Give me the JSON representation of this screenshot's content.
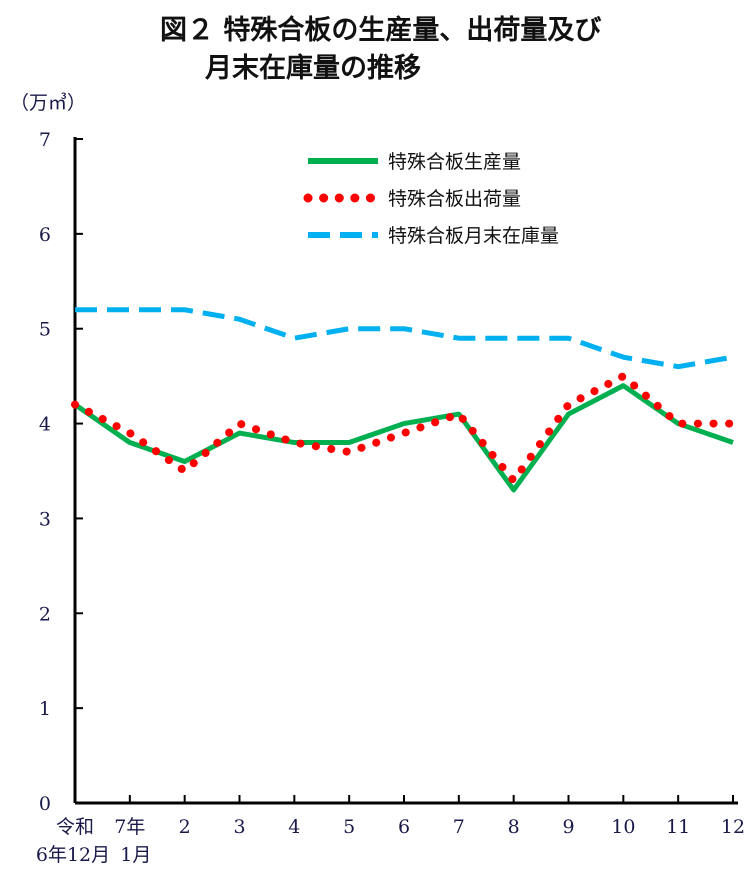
{
  "chart_data": {
    "type": "line",
    "title_line1": "図２ 特殊合板の生産量、出荷量及び",
    "title_line2": "月末在庫量の推移",
    "ylabel": "（万㎥）",
    "ylim": [
      0,
      7
    ],
    "yticks": [
      "0",
      "1",
      "2",
      "3",
      "4",
      "5",
      "6",
      "7"
    ],
    "categories": [
      [
        "令和",
        "6年12月"
      ],
      [
        "7年",
        "1月"
      ],
      [
        "2",
        ""
      ],
      [
        "3",
        ""
      ],
      [
        "4",
        ""
      ],
      [
        "5",
        ""
      ],
      [
        "6",
        ""
      ],
      [
        "7",
        ""
      ],
      [
        "8",
        ""
      ],
      [
        "9",
        ""
      ],
      [
        "10",
        ""
      ],
      [
        "11",
        ""
      ],
      [
        "12",
        ""
      ]
    ],
    "legend_position": "top-right",
    "series": [
      {
        "name": "特殊合板生産量",
        "style": "solid",
        "color": "#00b050",
        "values": [
          4.2,
          3.8,
          3.6,
          3.9,
          3.8,
          3.8,
          4.0,
          4.1,
          3.3,
          4.1,
          4.4,
          4.0,
          3.8
        ]
      },
      {
        "name": "特殊合板出荷量",
        "style": "dotted",
        "color": "#ff0000",
        "values": [
          4.2,
          3.9,
          3.5,
          4.0,
          3.8,
          3.7,
          3.9,
          4.1,
          3.4,
          4.2,
          4.5,
          4.0,
          4.0
        ]
      },
      {
        "name": "特殊合板月末在庫量",
        "style": "dashed",
        "color": "#00b0f0",
        "values": [
          5.2,
          5.2,
          5.2,
          5.1,
          4.9,
          5.0,
          5.0,
          4.9,
          4.9,
          4.9,
          4.7,
          4.6,
          4.7
        ]
      }
    ]
  }
}
